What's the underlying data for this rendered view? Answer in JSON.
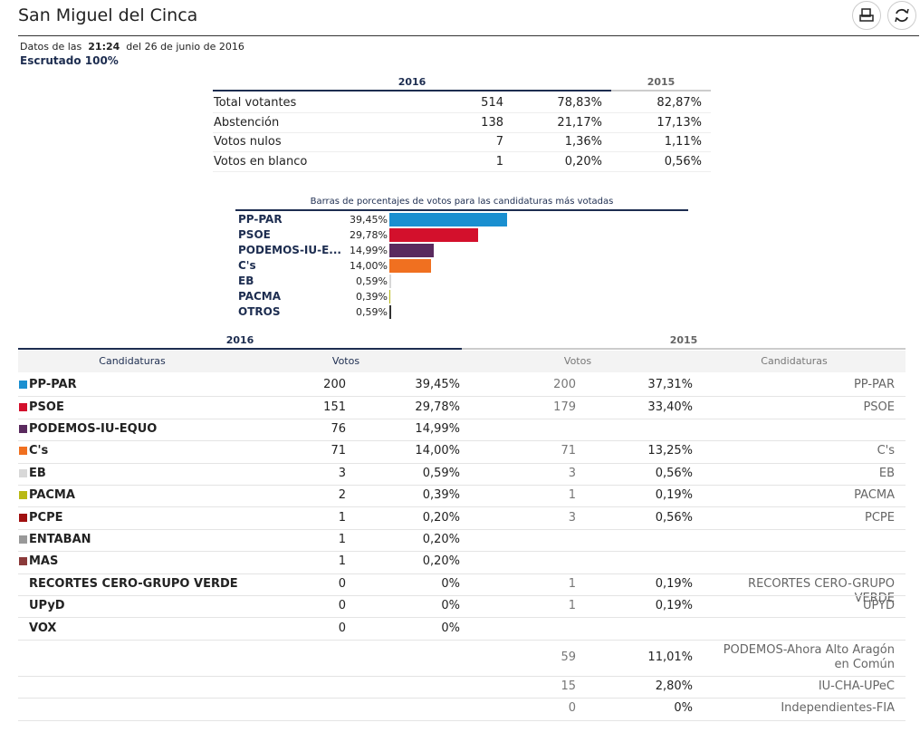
{
  "header": {
    "title": "San Miguel del Cinca",
    "time_prefix": "Datos de las",
    "time": "21:24",
    "date": "del 26 de junio de 2016",
    "scrutiny": "Escrutado 100%"
  },
  "summary": {
    "years": [
      "2016",
      "2015"
    ],
    "rows": [
      [
        "Total votantes",
        "514",
        "78,83%",
        "82,87%"
      ],
      [
        "Abstención",
        "138",
        "21,17%",
        "17,13%"
      ],
      [
        "Votos nulos",
        "7",
        "1,36%",
        "1,11%"
      ],
      [
        "Votos en blanco",
        "1",
        "0,20%",
        "0,56%"
      ]
    ]
  },
  "bars": {
    "title": "Barras de porcentajes de votos para las candidaturas más votadas",
    "items": [
      {
        "name": "PP-PAR",
        "value": 39.45,
        "label": "39,45%",
        "color": "#1a8fd0"
      },
      {
        "name": "PSOE",
        "value": 29.78,
        "label": "29,78%",
        "color": "#d3102c"
      },
      {
        "name": "PODEMOS-IU-E...",
        "value": 14.99,
        "label": "14,99%",
        "color": "#5a2a5e"
      },
      {
        "name": "C's",
        "value": 14.0,
        "label": "14,00%",
        "color": "#f07020"
      },
      {
        "name": "EB",
        "value": 0.59,
        "label": "0,59%",
        "color": "#d8d8d8"
      },
      {
        "name": "PACMA",
        "value": 0.39,
        "label": "0,39%",
        "color": "#b8b814"
      },
      {
        "name": "OTROS",
        "value": 0.59,
        "label": "0,59%",
        "color": "#333333"
      }
    ]
  },
  "results": {
    "years": [
      "2016",
      "2015"
    ],
    "headers": [
      "Candidaturas",
      "Votos",
      "Votos",
      "Candidaturas"
    ],
    "rows": [
      {
        "color": "#1a8fd0",
        "name": "PP-PAR",
        "votes": "200",
        "pct": "39,45%",
        "votes_prev": "200",
        "pct_prev": "37,31%",
        "name_prev": "PP-PAR"
      },
      {
        "color": "#d3102c",
        "name": "PSOE",
        "votes": "151",
        "pct": "29,78%",
        "votes_prev": "179",
        "pct_prev": "33,40%",
        "name_prev": "PSOE"
      },
      {
        "color": "#5a2a5e",
        "name": "PODEMOS-IU-EQUO",
        "votes": "76",
        "pct": "14,99%",
        "votes_prev": null,
        "pct_prev": null,
        "name_prev": null
      },
      {
        "color": "#f07020",
        "name": "C's",
        "votes": "71",
        "pct": "14,00%",
        "votes_prev": "71",
        "pct_prev": "13,25%",
        "name_prev": "C's"
      },
      {
        "color": "#d8d8d8",
        "name": "EB",
        "votes": "3",
        "pct": "0,59%",
        "votes_prev": "3",
        "pct_prev": "0,56%",
        "name_prev": "EB"
      },
      {
        "color": "#b8b814",
        "name": "PACMA",
        "votes": "2",
        "pct": "0,39%",
        "votes_prev": "1",
        "pct_prev": "0,19%",
        "name_prev": "PACMA"
      },
      {
        "color": "#a01010",
        "name": "PCPE",
        "votes": "1",
        "pct": "0,20%",
        "votes_prev": "3",
        "pct_prev": "0,56%",
        "name_prev": "PCPE"
      },
      {
        "color": "#999999",
        "name": "ENTABAN",
        "votes": "1",
        "pct": "0,20%",
        "votes_prev": null,
        "pct_prev": null,
        "name_prev": null
      },
      {
        "color": "#8b3a3a",
        "name": "MAS",
        "votes": "1",
        "pct": "0,20%",
        "votes_prev": null,
        "pct_prev": null,
        "name_prev": null
      },
      {
        "color": null,
        "name": "RECORTES CERO-GRUPO VERDE",
        "votes": "0",
        "pct": "0%",
        "votes_prev": "1",
        "pct_prev": "0,19%",
        "name_prev": "RECORTES CERO-GRUPO VERDE"
      },
      {
        "color": null,
        "name": "UPyD",
        "votes": "0",
        "pct": "0%",
        "votes_prev": "1",
        "pct_prev": "0,19%",
        "name_prev": "UPYD"
      },
      {
        "color": null,
        "name": "VOX",
        "votes": "0",
        "pct": "0%",
        "votes_prev": null,
        "pct_prev": null,
        "name_prev": null
      },
      {
        "color": null,
        "name": null,
        "votes": null,
        "pct": null,
        "votes_prev": "59",
        "pct_prev": "11,01%",
        "name_prev": "PODEMOS-Ahora Alto Aragón en Común"
      },
      {
        "color": null,
        "name": null,
        "votes": null,
        "pct": null,
        "votes_prev": "15",
        "pct_prev": "2,80%",
        "name_prev": "IU-CHA-UPeC"
      },
      {
        "color": null,
        "name": null,
        "votes": null,
        "pct": null,
        "votes_prev": "0",
        "pct_prev": "0%",
        "name_prev": "Independientes-FIA"
      }
    ]
  }
}
